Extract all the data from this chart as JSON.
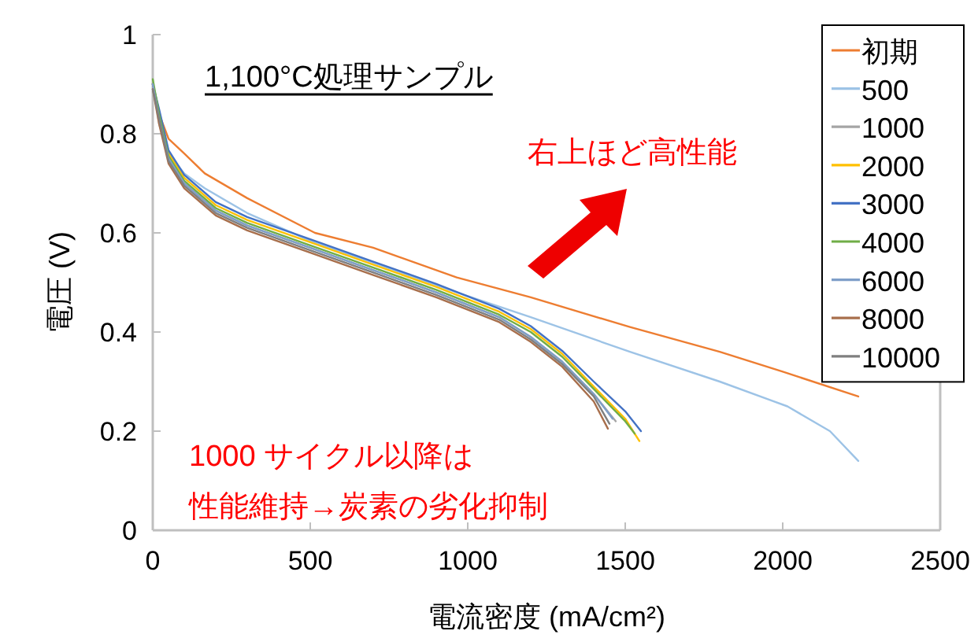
{
  "chart_data": {
    "type": "line",
    "xlabel": "電流密度 (mA/cm²)",
    "ylabel": "電圧 (V)",
    "annotations": [
      "1,100°C処理サンプル",
      "右上ほど高性能",
      "1000 サイクル以降は",
      "性能維持→炭素の劣化抑制"
    ],
    "xlim": [
      0,
      2500
    ],
    "xticks": [
      0,
      500,
      1000,
      1500,
      2000,
      2500
    ],
    "ylim": [
      0,
      1
    ],
    "yticks": [
      0,
      0.2,
      0.4,
      0.6,
      0.8,
      1
    ],
    "grid": false,
    "legend": "right",
    "marker": "none",
    "line_style": "solid",
    "series": [
      {
        "name": "初期",
        "color": "#ed7d31",
        "x": [
          0,
          20,
          50,
          100,
          165,
          300,
          515,
          700,
          965,
          1200,
          1515,
          1800,
          2000,
          2240
        ],
        "values": [
          0.9,
          0.84,
          0.79,
          0.76,
          0.72,
          0.67,
          0.6,
          0.57,
          0.51,
          0.47,
          0.41,
          0.36,
          0.32,
          0.27
        ]
      },
      {
        "name": "500",
        "color": "#9dc3e6",
        "x": [
          0,
          20,
          50,
          100,
          165,
          300,
          515,
          700,
          965,
          1200,
          1515,
          1800,
          2015,
          2150,
          2240
        ],
        "values": [
          0.9,
          0.82,
          0.76,
          0.72,
          0.69,
          0.64,
          0.58,
          0.54,
          0.48,
          0.43,
          0.36,
          0.3,
          0.25,
          0.2,
          0.14
        ]
      },
      {
        "name": "1000",
        "color": "#a5a5a5",
        "x": [
          0,
          20,
          50,
          100,
          200,
          300,
          500,
          700,
          900,
          1100,
          1200,
          1300,
          1400,
          1470
        ],
        "values": [
          0.9,
          0.84,
          0.75,
          0.7,
          0.645,
          0.615,
          0.57,
          0.525,
          0.48,
          0.43,
          0.39,
          0.34,
          0.275,
          0.22
        ]
      },
      {
        "name": "2000",
        "color": "#ffc000",
        "x": [
          0,
          20,
          50,
          100,
          200,
          300,
          500,
          700,
          900,
          1100,
          1200,
          1300,
          1400,
          1500,
          1545
        ],
        "values": [
          0.9,
          0.845,
          0.761,
          0.711,
          0.656,
          0.626,
          0.581,
          0.536,
          0.491,
          0.441,
          0.406,
          0.356,
          0.29,
          0.225,
          0.18
        ]
      },
      {
        "name": "3000",
        "color": "#4472c4",
        "x": [
          0,
          20,
          50,
          100,
          200,
          300,
          500,
          700,
          900,
          1100,
          1200,
          1300,
          1400,
          1500,
          1550
        ],
        "values": [
          0.9,
          0.85,
          0.767,
          0.717,
          0.662,
          0.632,
          0.587,
          0.542,
          0.497,
          0.447,
          0.412,
          0.362,
          0.3,
          0.24,
          0.2
        ]
      },
      {
        "name": "4000",
        "color": "#70ad47",
        "x": [
          0,
          20,
          50,
          100,
          200,
          300,
          500,
          700,
          900,
          1100,
          1200,
          1300,
          1400,
          1500,
          1530
        ],
        "values": [
          0.91,
          0.84,
          0.755,
          0.705,
          0.65,
          0.62,
          0.575,
          0.53,
          0.485,
          0.435,
          0.4,
          0.35,
          0.285,
          0.22,
          0.195
        ]
      },
      {
        "name": "6000",
        "color": "#7f9fc9",
        "x": [
          0,
          20,
          50,
          100,
          200,
          300,
          500,
          700,
          900,
          1100,
          1200,
          1300,
          1400,
          1460
        ],
        "values": [
          0.9,
          0.83,
          0.75,
          0.7,
          0.645,
          0.615,
          0.57,
          0.525,
          0.48,
          0.43,
          0.39,
          0.34,
          0.275,
          0.225
        ]
      },
      {
        "name": "8000",
        "color": "#a86f4c",
        "x": [
          0,
          20,
          50,
          100,
          200,
          300,
          500,
          700,
          900,
          1100,
          1200,
          1300,
          1400,
          1445
        ],
        "values": [
          0.89,
          0.82,
          0.74,
          0.69,
          0.635,
          0.605,
          0.56,
          0.515,
          0.47,
          0.42,
          0.38,
          0.33,
          0.26,
          0.205
        ]
      },
      {
        "name": "10000",
        "color": "#7f7f7f",
        "x": [
          0,
          20,
          50,
          100,
          200,
          300,
          500,
          700,
          900,
          1100,
          1200,
          1300,
          1400,
          1450
        ],
        "values": [
          0.89,
          0.83,
          0.745,
          0.695,
          0.64,
          0.61,
          0.565,
          0.52,
          0.475,
          0.425,
          0.385,
          0.335,
          0.27,
          0.215
        ]
      }
    ]
  }
}
